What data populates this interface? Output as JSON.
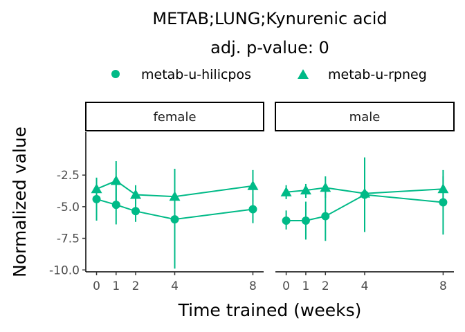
{
  "chart_data": {
    "type": "line",
    "title": "METAB;LUNG;Kynurenic acid",
    "subtitle": "adj. p-value: 0",
    "xlabel": "Time trained (weeks)",
    "ylabel": "Normalized value",
    "x_ticks": [
      0,
      1,
      2,
      4,
      8
    ],
    "y_ticks": [
      -2.5,
      -5.0,
      -7.5,
      -10.0
    ],
    "y_tick_labels": [
      "-2.5",
      "-5.0",
      "-7.5",
      "-10.0"
    ],
    "xlim": [
      -0.55,
      8.55
    ],
    "ylim": [
      -10.15,
      0.9
    ],
    "legend_position": "top",
    "grid": false,
    "color": "#00BA87",
    "series": [
      {
        "name": "metab-u-hilicpos",
        "marker": "circle"
      },
      {
        "name": "metab-u-rpneg",
        "marker": "triangle"
      }
    ],
    "panels": [
      {
        "label": "female",
        "data": {
          "metab-u-hilicpos": [
            {
              "x": 0,
              "y": -4.4,
              "lo": -6.1,
              "hi": -3.4
            },
            {
              "x": 1,
              "y": -4.85,
              "lo": -6.4,
              "hi": -3.3
            },
            {
              "x": 2,
              "y": -5.35,
              "lo": -6.2,
              "hi": -4.5
            },
            {
              "x": 4,
              "y": -6.0,
              "lo": -9.9,
              "hi": -2.0
            },
            {
              "x": 8,
              "y": -5.2,
              "lo": -6.3,
              "hi": -4.0
            }
          ],
          "metab-u-rpneg": [
            {
              "x": 0,
              "y": -3.6,
              "lo": -4.3,
              "hi": -2.7
            },
            {
              "x": 1,
              "y": -2.95,
              "lo": -4.6,
              "hi": -1.4
            },
            {
              "x": 2,
              "y": -4.05,
              "lo": -4.8,
              "hi": -3.3
            },
            {
              "x": 4,
              "y": -4.2,
              "lo": -4.9,
              "hi": -3.6
            },
            {
              "x": 8,
              "y": -3.35,
              "lo": -4.6,
              "hi": -2.1
            }
          ]
        }
      },
      {
        "label": "male",
        "data": {
          "metab-u-hilicpos": [
            {
              "x": 0,
              "y": -6.1,
              "lo": -6.8,
              "hi": -5.3
            },
            {
              "x": 1,
              "y": -6.1,
              "lo": -7.6,
              "hi": -4.6
            },
            {
              "x": 2,
              "y": -5.75,
              "lo": -7.7,
              "hi": -3.8
            },
            {
              "x": 4,
              "y": -4.05,
              "lo": -7.0,
              "hi": -1.1
            },
            {
              "x": 8,
              "y": -4.65,
              "lo": -7.2,
              "hi": -2.1
            }
          ],
          "metab-u-rpneg": [
            {
              "x": 0,
              "y": -3.85,
              "lo": -4.4,
              "hi": -3.3
            },
            {
              "x": 1,
              "y": -3.7,
              "lo": -4.3,
              "hi": -3.2
            },
            {
              "x": 2,
              "y": -3.5,
              "lo": -4.3,
              "hi": -2.6
            },
            {
              "x": 4,
              "y": -3.95,
              "lo": -4.4,
              "hi": -3.6
            },
            {
              "x": 8,
              "y": -3.6,
              "lo": -4.5,
              "hi": -2.6
            }
          ]
        }
      }
    ]
  }
}
